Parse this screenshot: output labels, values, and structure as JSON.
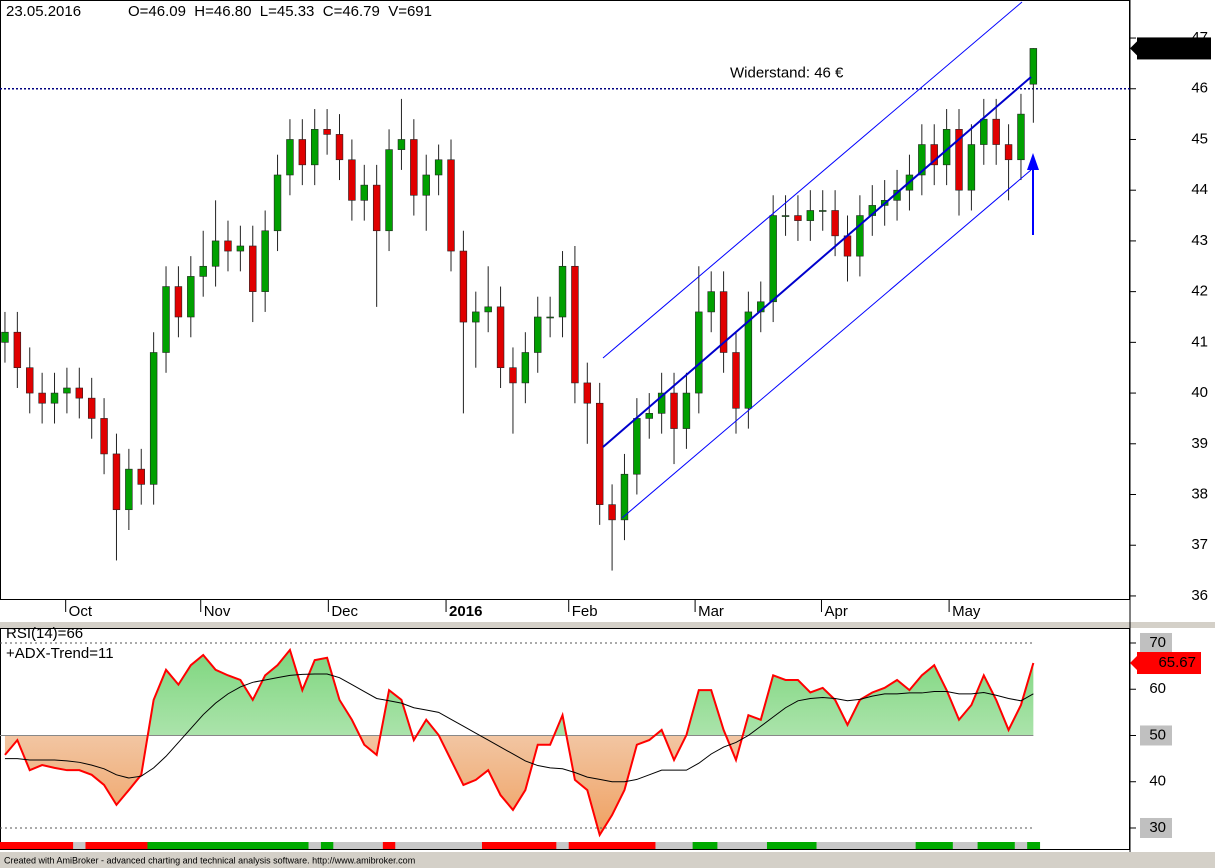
{
  "header": {
    "date": "23.05.2016",
    "ohlcv": "O=46.09  H=46.80  L=45.33  C=46.79  V=691"
  },
  "footer": "Created with AmiBroker - advanced charting and technical analysis software. http://www.amibroker.com",
  "chart_data": [
    {
      "type": "candlestick",
      "up_color": "#00a000",
      "down_color": "#e00000",
      "xlim": [
        -0.4,
        90.8
      ],
      "xticks": [
        {
          "value": 4.9,
          "label": "Oct"
        },
        {
          "value": 15.8,
          "label": "Nov"
        },
        {
          "value": 26.1,
          "label": "Dec"
        },
        {
          "value": 35.6,
          "label": "2016"
        },
        {
          "value": 45.5,
          "label": "Feb"
        },
        {
          "value": 55.7,
          "label": "Mar"
        },
        {
          "value": 65.9,
          "label": "Apr"
        },
        {
          "value": 76.2,
          "label": "May"
        }
      ],
      "ylim": [
        35.92,
        47.75
      ],
      "yticks": [
        36,
        37,
        38,
        39,
        40,
        41,
        42,
        43,
        44,
        45,
        46,
        47
      ],
      "resistance": 46,
      "annotation": "Widerstand: 46 €",
      "open": [
        41.0,
        41.2,
        40.5,
        40.0,
        39.8,
        40.0,
        40.1,
        39.9,
        39.5,
        38.8,
        37.7,
        38.5,
        38.2,
        40.8,
        42.1,
        41.5,
        42.3,
        42.5,
        43.0,
        42.8,
        42.9,
        42.0,
        43.2,
        44.3,
        45.0,
        44.5,
        45.2,
        45.1,
        44.6,
        43.8,
        44.1,
        43.2,
        44.8,
        45.0,
        43.9,
        44.3,
        44.6,
        42.8,
        41.4,
        41.6,
        41.7,
        40.5,
        40.2,
        40.8,
        41.5,
        41.5,
        42.5,
        40.2,
        39.8,
        37.8,
        37.5,
        38.4,
        39.5,
        39.6,
        40.0,
        39.3,
        40.0,
        41.6,
        42.0,
        40.8,
        39.7,
        41.6,
        41.8,
        43.5,
        43.5,
        43.4,
        43.6,
        43.6,
        43.1,
        42.7,
        43.5,
        43.7,
        43.8,
        44.0,
        44.3,
        44.9,
        44.5,
        45.2,
        44.0,
        44.9,
        45.4,
        44.9,
        44.6,
        46.09
      ],
      "high": [
        41.6,
        41.6,
        40.9,
        40.4,
        40.4,
        40.5,
        40.5,
        40.3,
        39.9,
        39.2,
        38.9,
        38.9,
        41.2,
        42.5,
        42.5,
        42.7,
        43.2,
        43.8,
        43.4,
        43.3,
        43.3,
        43.6,
        44.7,
        45.4,
        45.4,
        45.6,
        45.6,
        45.5,
        45.0,
        44.5,
        44.5,
        45.2,
        45.8,
        45.4,
        44.7,
        44.9,
        45.0,
        43.2,
        42.0,
        42.5,
        42.1,
        40.9,
        41.2,
        41.9,
        41.9,
        42.8,
        42.9,
        40.6,
        40.2,
        38.2,
        38.8,
        39.9,
        40.0,
        40.4,
        40.4,
        40.4,
        42.5,
        42.4,
        42.4,
        41.2,
        42.0,
        42.2,
        43.9,
        43.9,
        43.9,
        44.0,
        44.0,
        44.0,
        43.5,
        43.9,
        44.1,
        44.2,
        44.4,
        44.7,
        45.3,
        45.3,
        45.6,
        45.6,
        45.3,
        45.8,
        45.8,
        45.3,
        45.9,
        46.8
      ],
      "low": [
        40.6,
        40.1,
        39.6,
        39.4,
        39.4,
        39.6,
        39.5,
        39.1,
        38.4,
        36.7,
        37.3,
        37.8,
        37.8,
        40.4,
        41.1,
        41.1,
        41.9,
        42.1,
        42.4,
        42.4,
        41.4,
        41.6,
        42.8,
        43.9,
        44.1,
        44.1,
        44.7,
        44.2,
        43.4,
        43.4,
        41.7,
        42.8,
        44.4,
        43.5,
        43.2,
        43.9,
        42.4,
        39.6,
        40.5,
        41.2,
        40.1,
        39.2,
        39.8,
        40.4,
        41.1,
        41.1,
        39.8,
        39.0,
        37.4,
        36.5,
        37.1,
        38.0,
        39.1,
        39.2,
        38.6,
        38.9,
        39.6,
        41.2,
        40.4,
        39.2,
        39.3,
        41.2,
        41.4,
        43.1,
        43.0,
        43.0,
        43.2,
        42.7,
        42.2,
        42.3,
        43.1,
        43.3,
        43.4,
        43.6,
        43.9,
        44.1,
        44.1,
        43.5,
        43.6,
        44.5,
        44.5,
        43.8,
        44.2,
        45.33
      ],
      "close": [
        41.2,
        40.5,
        40.0,
        39.8,
        40.0,
        40.1,
        39.9,
        39.5,
        38.8,
        37.7,
        38.5,
        38.2,
        40.8,
        42.1,
        41.5,
        42.3,
        42.5,
        43.0,
        42.8,
        42.9,
        42.0,
        43.2,
        44.3,
        45.0,
        44.5,
        45.2,
        45.1,
        44.6,
        43.8,
        44.1,
        43.2,
        44.8,
        45.0,
        43.9,
        44.3,
        44.6,
        42.8,
        41.4,
        41.6,
        41.7,
        40.5,
        40.2,
        40.8,
        41.5,
        41.5,
        42.5,
        40.2,
        39.8,
        37.8,
        37.5,
        38.4,
        39.5,
        39.6,
        40.0,
        39.3,
        40.0,
        41.6,
        42.0,
        40.8,
        39.7,
        41.6,
        41.8,
        43.5,
        43.5,
        43.4,
        43.6,
        43.6,
        43.1,
        42.7,
        43.5,
        43.7,
        43.8,
        44.0,
        44.3,
        44.9,
        44.5,
        45.2,
        44.0,
        44.9,
        45.4,
        44.9,
        44.6,
        45.5,
        46.795
      ]
    },
    {
      "type": "line",
      "title": "RSI(14)=66",
      "subtitle": "+ADX-Trend=11",
      "xlim": [
        -0.4,
        90.8
      ],
      "ylim": [
        25.24,
        73.24
      ],
      "yticks": [
        30,
        40,
        50,
        60,
        70
      ],
      "levels": [
        30,
        70
      ],
      "baseline": 50,
      "series": [
        {
          "color": "#ff0000",
          "values": [
            45.8,
            49,
            42.5,
            43.6,
            43,
            42.5,
            42.5,
            41.5,
            39.3,
            35,
            38.2,
            41.5,
            57.7,
            64.2,
            61,
            65.2,
            67.4,
            64.2,
            63,
            62,
            57.7,
            63,
            65.2,
            68.5,
            59.8,
            66.3,
            66.8,
            57.7,
            53.4,
            48,
            45.8,
            59.8,
            57.7,
            49,
            53.4,
            50.1,
            44.7,
            39.3,
            40.4,
            42.5,
            37.1,
            33.9,
            38.2,
            48,
            48,
            54.4,
            40.4,
            38.2,
            28.5,
            32.8,
            38.2,
            48,
            49,
            51.2,
            44.7,
            50.1,
            59.8,
            59.8,
            51.2,
            44.7,
            54.4,
            53.4,
            63,
            62,
            62,
            59.3,
            60.3,
            57.7,
            52.3,
            57.7,
            59.3,
            60.3,
            62,
            59.8,
            63,
            65.2,
            59.8,
            53.4,
            56.6,
            63,
            57.7,
            51.2,
            56.6,
            65.67
          ]
        },
        {
          "color": "#000000",
          "values": [
            45,
            45,
            44.7,
            44.7,
            44.7,
            44.5,
            44.2,
            43.6,
            42.8,
            41.5,
            40.8,
            41.2,
            43,
            45.5,
            48.5,
            51.5,
            54.5,
            57,
            59,
            60.5,
            61.5,
            62,
            62.5,
            63,
            63.2,
            63.3,
            63.3,
            62.5,
            61,
            59.5,
            58,
            57.5,
            57,
            56,
            55.5,
            55,
            53.5,
            52,
            50.5,
            49,
            47.5,
            46,
            44.5,
            43.5,
            43,
            42.8,
            42,
            41,
            40.5,
            40,
            40,
            40.5,
            41.5,
            42.5,
            42.5,
            42.5,
            44,
            46,
            47.5,
            48.5,
            50,
            52,
            54,
            56,
            57.5,
            58,
            58.2,
            58,
            57.5,
            57.8,
            58.5,
            59,
            59,
            59.2,
            59.2,
            59.5,
            59.5,
            59,
            59,
            59.3,
            58.7,
            58,
            57.5,
            59
          ]
        }
      ],
      "trend_colors": [
        "#ff0000",
        "#ff0000",
        "#ff0000",
        "#ff0000",
        "#ff0000",
        "#ff0000",
        "#c8c8c8",
        "#ff0000",
        "#ff0000",
        "#ff0000",
        "#ff0000",
        "#ff0000",
        "#00aa00",
        "#00aa00",
        "#00aa00",
        "#00aa00",
        "#00aa00",
        "#00aa00",
        "#00aa00",
        "#00aa00",
        "#00aa00",
        "#00aa00",
        "#00aa00",
        "#00aa00",
        "#00aa00",
        "#c8c8c8",
        "#00aa00",
        "#c8c8c8",
        "#c8c8c8",
        "#c8c8c8",
        "#c8c8c8",
        "#ff0000",
        "#c8c8c8",
        "#c8c8c8",
        "#c8c8c8",
        "#c8c8c8",
        "#c8c8c8",
        "#c8c8c8",
        "#c8c8c8",
        "#ff0000",
        "#ff0000",
        "#ff0000",
        "#ff0000",
        "#ff0000",
        "#ff0000",
        "#c8c8c8",
        "#ff0000",
        "#ff0000",
        "#ff0000",
        "#ff0000",
        "#ff0000",
        "#ff0000",
        "#ff0000",
        "#c8c8c8",
        "#c8c8c8",
        "#c8c8c8",
        "#00aa00",
        "#00aa00",
        "#c8c8c8",
        "#c8c8c8",
        "#c8c8c8",
        "#c8c8c8",
        "#00aa00",
        "#00aa00",
        "#00aa00",
        "#00aa00",
        "#c8c8c8",
        "#c8c8c8",
        "#c8c8c8",
        "#c8c8c8",
        "#c8c8c8",
        "#c8c8c8",
        "#c8c8c8",
        "#c8c8c8",
        "#00aa00",
        "#00aa00",
        "#00aa00",
        "#c8c8c8",
        "#c8c8c8",
        "#00aa00",
        "#00aa00",
        "#00aa00",
        "#c8c8c8",
        "#00aa00"
      ]
    }
  ]
}
